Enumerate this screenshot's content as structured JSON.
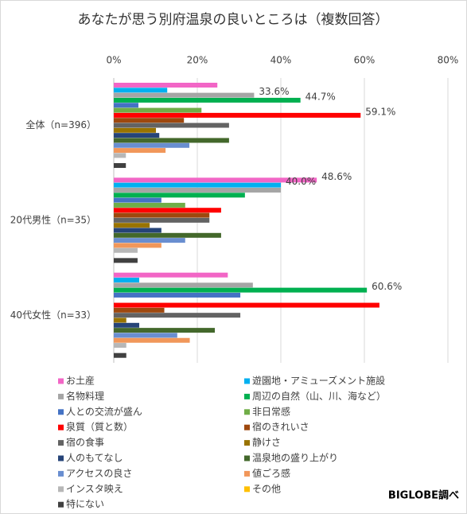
{
  "chart_data": {
    "type": "hbar",
    "title": "あなたが思う別府温泉の良いところは（複数回答）",
    "source": "BIGLOBE調べ",
    "categories": [
      "全体（n=396）",
      "20代男性（n=35）",
      "40代女性（n=33）"
    ],
    "xlim": [
      0,
      80
    ],
    "xticks": [
      {
        "value": 0,
        "label": "0%"
      },
      {
        "value": 20,
        "label": "20%"
      },
      {
        "value": 40,
        "label": "40%"
      },
      {
        "value": 60,
        "label": "60%"
      },
      {
        "value": 80,
        "label": "80%"
      }
    ],
    "grid": true,
    "series": [
      {
        "name": "お土産",
        "color": "#f266c6",
        "values": [
          24.8,
          48.6,
          27.3
        ],
        "value_labels": [
          null,
          "48.6%",
          null
        ]
      },
      {
        "name": "遊園地・アミューズメント施設",
        "color": "#00b0f0",
        "values": [
          12.8,
          40.0,
          6.1
        ],
        "value_labels": [
          null,
          "40.0%",
          null
        ]
      },
      {
        "name": "名物料理",
        "color": "#a5a5a5",
        "values": [
          33.6,
          40.0,
          33.3
        ],
        "value_labels": [
          "33.6%",
          null,
          null
        ]
      },
      {
        "name": "周辺の自然（山、川、海など）",
        "color": "#00b050",
        "values": [
          44.7,
          31.4,
          60.6
        ],
        "value_labels": [
          "44.7%",
          null,
          "60.6%"
        ]
      },
      {
        "name": "人との交流が盛ん",
        "color": "#4472c4",
        "values": [
          5.9,
          11.4,
          30.3
        ]
      },
      {
        "name": "非日常感",
        "color": "#70ad47",
        "values": [
          21.0,
          17.1,
          0
        ]
      },
      {
        "name": "泉質（質と数）",
        "color": "#ff0000",
        "values": [
          59.1,
          25.7,
          63.6
        ],
        "value_labels": [
          "59.1%",
          null,
          null
        ]
      },
      {
        "name": "宿のきれいさ",
        "color": "#9e480e",
        "values": [
          16.8,
          22.9,
          12.1
        ]
      },
      {
        "name": "宿の食事",
        "color": "#636363",
        "values": [
          27.6,
          22.9,
          30.3
        ]
      },
      {
        "name": "静けさ",
        "color": "#997300",
        "values": [
          10.1,
          8.6,
          3.0
        ]
      },
      {
        "name": "人のもてなし",
        "color": "#264478",
        "values": [
          10.9,
          11.4,
          6.1
        ]
      },
      {
        "name": "温泉地の盛り上がり",
        "color": "#43682b",
        "values": [
          27.6,
          25.7,
          24.2
        ]
      },
      {
        "name": "アクセスの良さ",
        "color": "#698ed0",
        "values": [
          18.1,
          17.1,
          15.2
        ]
      },
      {
        "name": "値ごろ感",
        "color": "#f1975a",
        "values": [
          12.4,
          11.4,
          18.2
        ]
      },
      {
        "name": "インスタ映え",
        "color": "#b7b7b7",
        "values": [
          2.9,
          5.7,
          3.0
        ]
      },
      {
        "name": "その他",
        "color": "#ffc000",
        "values": [
          0,
          0,
          0
        ]
      },
      {
        "name": "特にない",
        "color": "#404040",
        "values": [
          2.9,
          5.7,
          3.0
        ]
      }
    ]
  }
}
